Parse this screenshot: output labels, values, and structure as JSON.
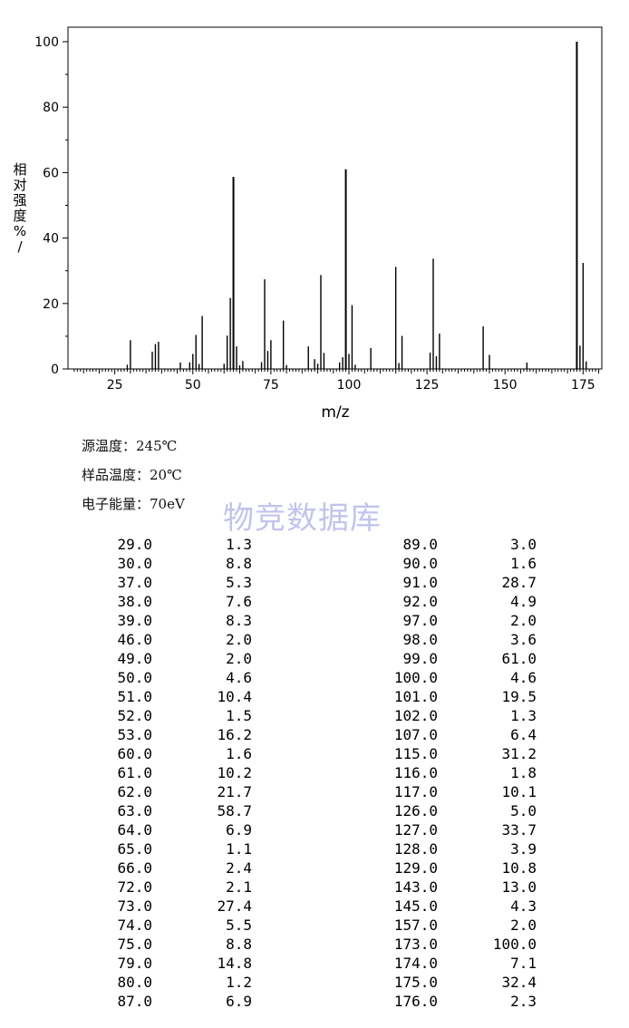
{
  "chart_data": {
    "type": "bar",
    "xlabel": "m/z",
    "ylabel": "相对强度%/",
    "xlim": [
      10,
      181
    ],
    "ylim": [
      0,
      100
    ],
    "xticks": [
      25,
      50,
      75,
      100,
      125,
      150,
      175
    ],
    "yticks": [
      0,
      20,
      40,
      60,
      80,
      100
    ],
    "bar_color": "#000000",
    "x": [
      29,
      30,
      37,
      38,
      39,
      46,
      49,
      50,
      51,
      52,
      53,
      60,
      61,
      62,
      63,
      64,
      65,
      66,
      72,
      73,
      74,
      75,
      79,
      80,
      87,
      89,
      90,
      91,
      92,
      97,
      98,
      99,
      100,
      101,
      102,
      107,
      115,
      116,
      117,
      126,
      127,
      128,
      129,
      143,
      145,
      157,
      173,
      174,
      175,
      176
    ],
    "values": [
      1.3,
      8.8,
      5.3,
      7.6,
      8.3,
      2.0,
      2.0,
      4.6,
      10.4,
      1.5,
      16.2,
      1.6,
      10.2,
      21.7,
      58.7,
      6.9,
      1.1,
      2.4,
      2.1,
      27.4,
      5.5,
      8.8,
      14.8,
      1.2,
      6.9,
      3.0,
      1.6,
      28.7,
      4.9,
      2.0,
      3.6,
      61.0,
      4.6,
      19.5,
      1.3,
      6.4,
      31.2,
      1.8,
      10.1,
      5.0,
      33.7,
      3.9,
      10.8,
      13.0,
      4.3,
      2.0,
      100.0,
      7.1,
      32.4,
      2.3
    ]
  },
  "meta": {
    "source_temp": "源温度：245℃",
    "sample_temp": "样品温度：20℃",
    "electron_energy": "电子能量：70eV"
  },
  "watermark": "物竞数据库",
  "table": {
    "left": [
      [
        "29.0",
        "1.3"
      ],
      [
        "30.0",
        "8.8"
      ],
      [
        "37.0",
        "5.3"
      ],
      [
        "38.0",
        "7.6"
      ],
      [
        "39.0",
        "8.3"
      ],
      [
        "46.0",
        "2.0"
      ],
      [
        "49.0",
        "2.0"
      ],
      [
        "50.0",
        "4.6"
      ],
      [
        "51.0",
        "10.4"
      ],
      [
        "52.0",
        "1.5"
      ],
      [
        "53.0",
        "16.2"
      ],
      [
        "60.0",
        "1.6"
      ],
      [
        "61.0",
        "10.2"
      ],
      [
        "62.0",
        "21.7"
      ],
      [
        "63.0",
        "58.7"
      ],
      [
        "64.0",
        "6.9"
      ],
      [
        "65.0",
        "1.1"
      ],
      [
        "66.0",
        "2.4"
      ],
      [
        "72.0",
        "2.1"
      ],
      [
        "73.0",
        "27.4"
      ],
      [
        "74.0",
        "5.5"
      ],
      [
        "75.0",
        "8.8"
      ],
      [
        "79.0",
        "14.8"
      ],
      [
        "80.0",
        "1.2"
      ],
      [
        "87.0",
        "6.9"
      ]
    ],
    "right": [
      [
        "89.0",
        "3.0"
      ],
      [
        "90.0",
        "1.6"
      ],
      [
        "91.0",
        "28.7"
      ],
      [
        "92.0",
        "4.9"
      ],
      [
        "97.0",
        "2.0"
      ],
      [
        "98.0",
        "3.6"
      ],
      [
        "99.0",
        "61.0"
      ],
      [
        "100.0",
        "4.6"
      ],
      [
        "101.0",
        "19.5"
      ],
      [
        "102.0",
        "1.3"
      ],
      [
        "107.0",
        "6.4"
      ],
      [
        "115.0",
        "31.2"
      ],
      [
        "116.0",
        "1.8"
      ],
      [
        "117.0",
        "10.1"
      ],
      [
        "126.0",
        "5.0"
      ],
      [
        "127.0",
        "33.7"
      ],
      [
        "128.0",
        "3.9"
      ],
      [
        "129.0",
        "10.8"
      ],
      [
        "143.0",
        "13.0"
      ],
      [
        "145.0",
        "4.3"
      ],
      [
        "157.0",
        "2.0"
      ],
      [
        "173.0",
        "100.0"
      ],
      [
        "174.0",
        "7.1"
      ],
      [
        "175.0",
        "32.4"
      ],
      [
        "176.0",
        "2.3"
      ]
    ]
  }
}
